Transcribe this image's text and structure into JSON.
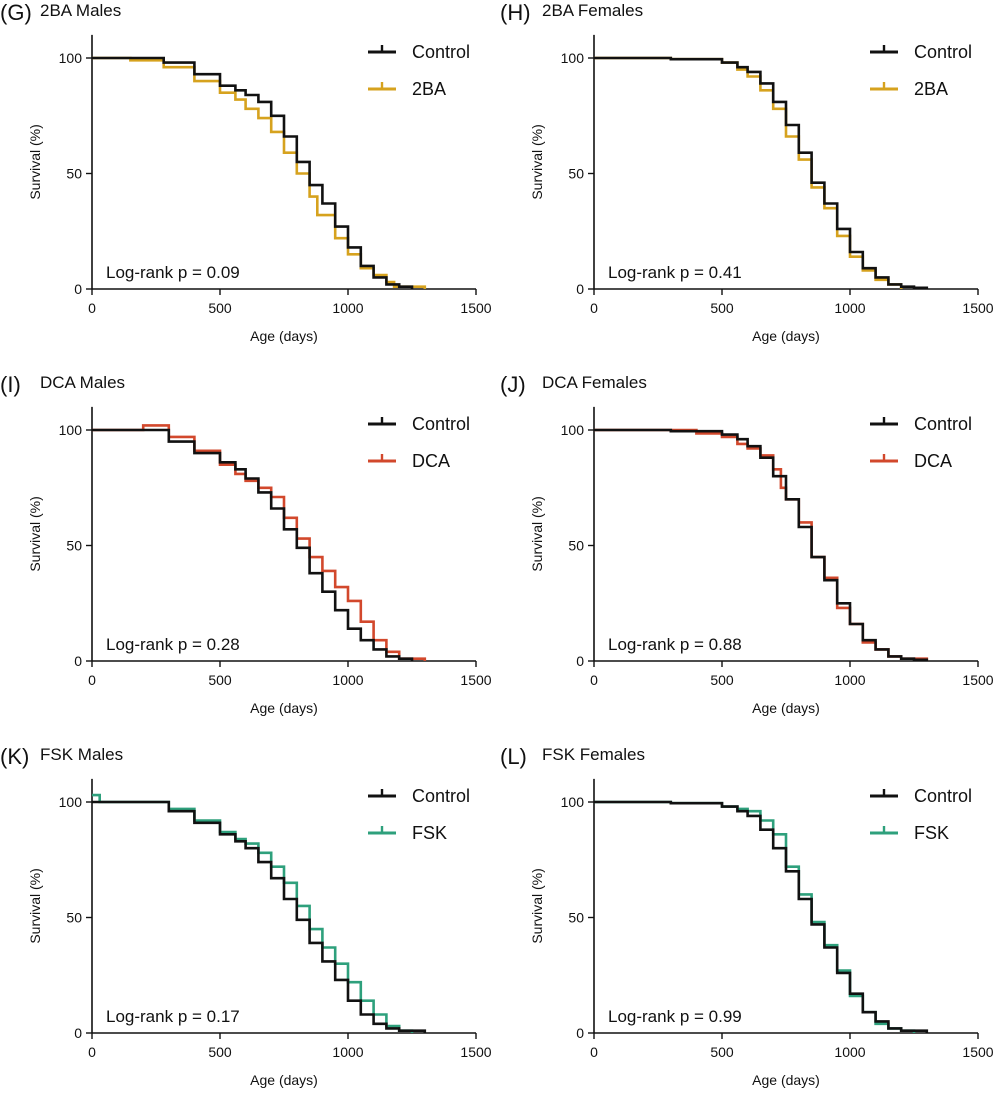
{
  "chart_data": [
    {
      "panel": "(G)",
      "title": "2BA Males",
      "type": "line",
      "xlabel": "Age (days)",
      "ylabel": "Survival (%)",
      "xlim": [
        0,
        1500
      ],
      "ylim": [
        0,
        100
      ],
      "xticks": [
        0,
        500,
        1000,
        1500
      ],
      "yticks": [
        0,
        50,
        100
      ],
      "annotation": "Log-rank p = 0.09",
      "series": [
        {
          "name": "Control",
          "color": "#111111",
          "points": [
            [
              0,
              100
            ],
            [
              150,
              100
            ],
            [
              280,
              98
            ],
            [
              400,
              93
            ],
            [
              500,
              88
            ],
            [
              560,
              86
            ],
            [
              600,
              84
            ],
            [
              650,
              81
            ],
            [
              700,
              75
            ],
            [
              750,
              66
            ],
            [
              800,
              55
            ],
            [
              850,
              45
            ],
            [
              900,
              37
            ],
            [
              950,
              27
            ],
            [
              1000,
              18
            ],
            [
              1050,
              10
            ],
            [
              1100,
              5
            ],
            [
              1150,
              2
            ],
            [
              1200,
              1
            ],
            [
              1250,
              0
            ]
          ]
        },
        {
          "name": "2BA",
          "color": "#D6A21E",
          "points": [
            [
              0,
              100
            ],
            [
              150,
              99
            ],
            [
              280,
              96
            ],
            [
              400,
              90
            ],
            [
              500,
              85
            ],
            [
              560,
              82
            ],
            [
              600,
              78
            ],
            [
              650,
              74
            ],
            [
              700,
              68
            ],
            [
              750,
              59
            ],
            [
              800,
              50
            ],
            [
              850,
              40
            ],
            [
              880,
              32
            ],
            [
              950,
              22
            ],
            [
              1000,
              15
            ],
            [
              1050,
              9
            ],
            [
              1100,
              6
            ],
            [
              1150,
              3
            ],
            [
              1180,
              1
            ],
            [
              1300,
              0
            ]
          ]
        }
      ]
    },
    {
      "panel": "(H)",
      "title": "2BA Females",
      "type": "line",
      "xlabel": "Age (days)",
      "ylabel": "Survival (%)",
      "xlim": [
        0,
        1500
      ],
      "ylim": [
        0,
        100
      ],
      "xticks": [
        0,
        500,
        1000,
        1500
      ],
      "yticks": [
        0,
        50,
        100
      ],
      "annotation": "Log-rank p = 0.41",
      "series": [
        {
          "name": "Control",
          "color": "#111111",
          "points": [
            [
              0,
              100
            ],
            [
              300,
              99.5
            ],
            [
              500,
              98
            ],
            [
              560,
              96
            ],
            [
              600,
              94
            ],
            [
              650,
              89
            ],
            [
              700,
              81
            ],
            [
              750,
              71
            ],
            [
              800,
              59
            ],
            [
              850,
              46
            ],
            [
              900,
              37
            ],
            [
              950,
              26
            ],
            [
              1000,
              16
            ],
            [
              1050,
              9
            ],
            [
              1100,
              5
            ],
            [
              1150,
              2
            ],
            [
              1200,
              1
            ],
            [
              1250,
              0.5
            ],
            [
              1300,
              0
            ]
          ]
        },
        {
          "name": "2BA",
          "color": "#D6A21E",
          "points": [
            [
              0,
              100
            ],
            [
              300,
              99.5
            ],
            [
              500,
              98
            ],
            [
              560,
              95
            ],
            [
              600,
              92
            ],
            [
              650,
              86
            ],
            [
              700,
              78
            ],
            [
              750,
              66
            ],
            [
              800,
              56
            ],
            [
              850,
              44
            ],
            [
              900,
              35
            ],
            [
              950,
              23
            ],
            [
              1000,
              14
            ],
            [
              1050,
              8
            ],
            [
              1100,
              4
            ],
            [
              1150,
              2
            ],
            [
              1200,
              0
            ]
          ]
        }
      ]
    },
    {
      "panel": "(I)",
      "title": "DCA Males",
      "type": "line",
      "xlabel": "Age (days)",
      "ylabel": "Survival (%)",
      "xlim": [
        0,
        1500
      ],
      "ylim": [
        0,
        100
      ],
      "xticks": [
        0,
        500,
        1000,
        1500
      ],
      "yticks": [
        0,
        50,
        100
      ],
      "annotation": "Log-rank p = 0.28",
      "series": [
        {
          "name": "Control",
          "color": "#111111",
          "points": [
            [
              0,
              100
            ],
            [
              200,
              100
            ],
            [
              300,
              95
            ],
            [
              400,
              90
            ],
            [
              500,
              86
            ],
            [
              560,
              83
            ],
            [
              600,
              79
            ],
            [
              650,
              73
            ],
            [
              700,
              66
            ],
            [
              750,
              57
            ],
            [
              800,
              49
            ],
            [
              850,
              38
            ],
            [
              900,
              30
            ],
            [
              950,
              22
            ],
            [
              1000,
              14
            ],
            [
              1050,
              9
            ],
            [
              1100,
              5
            ],
            [
              1150,
              2
            ],
            [
              1200,
              1
            ],
            [
              1250,
              0
            ]
          ]
        },
        {
          "name": "DCA",
          "color": "#D2482C",
          "points": [
            [
              0,
              100
            ],
            [
              200,
              102
            ],
            [
              300,
              97
            ],
            [
              400,
              91
            ],
            [
              500,
              85
            ],
            [
              560,
              81
            ],
            [
              600,
              78
            ],
            [
              650,
              75
            ],
            [
              700,
              71
            ],
            [
              750,
              62
            ],
            [
              800,
              53
            ],
            [
              850,
              45
            ],
            [
              900,
              39
            ],
            [
              950,
              32
            ],
            [
              1000,
              26
            ],
            [
              1050,
              17
            ],
            [
              1100,
              9
            ],
            [
              1150,
              4
            ],
            [
              1200,
              1
            ],
            [
              1300,
              0
            ]
          ]
        }
      ]
    },
    {
      "panel": "(J)",
      "title": "DCA Females",
      "type": "line",
      "xlabel": "Age (days)",
      "ylabel": "Survival (%)",
      "xlim": [
        0,
        1500
      ],
      "ylim": [
        0,
        100
      ],
      "xticks": [
        0,
        500,
        1000,
        1500
      ],
      "yticks": [
        0,
        50,
        100
      ],
      "annotation": "Log-rank p = 0.88",
      "series": [
        {
          "name": "Control",
          "color": "#111111",
          "points": [
            [
              0,
              100
            ],
            [
              300,
              99.5
            ],
            [
              500,
              98
            ],
            [
              560,
              96
            ],
            [
              600,
              93
            ],
            [
              650,
              88
            ],
            [
              700,
              80
            ],
            [
              750,
              70
            ],
            [
              800,
              58
            ],
            [
              850,
              45
            ],
            [
              900,
              35
            ],
            [
              950,
              25
            ],
            [
              1000,
              16
            ],
            [
              1050,
              9
            ],
            [
              1100,
              5
            ],
            [
              1150,
              2
            ],
            [
              1200,
              1
            ],
            [
              1250,
              0.5
            ],
            [
              1300,
              0
            ]
          ]
        },
        {
          "name": "DCA",
          "color": "#D2482C",
          "points": [
            [
              0,
              100
            ],
            [
              300,
              100
            ],
            [
              400,
              98.5
            ],
            [
              500,
              97
            ],
            [
              560,
              94
            ],
            [
              600,
              92
            ],
            [
              650,
              89
            ],
            [
              700,
              83
            ],
            [
              730,
              75
            ],
            [
              750,
              70
            ],
            [
              800,
              60
            ],
            [
              850,
              45
            ],
            [
              900,
              36
            ],
            [
              950,
              23
            ],
            [
              1000,
              16
            ],
            [
              1050,
              8
            ],
            [
              1100,
              5
            ],
            [
              1150,
              2
            ],
            [
              1200,
              1
            ],
            [
              1300,
              0
            ]
          ]
        }
      ]
    },
    {
      "panel": "(K)",
      "title": "FSK Males",
      "type": "line",
      "xlabel": "Age (days)",
      "ylabel": "Survival (%)",
      "xlim": [
        0,
        1500
      ],
      "ylim": [
        0,
        100
      ],
      "xticks": [
        0,
        500,
        1000,
        1500
      ],
      "yticks": [
        0,
        50,
        100
      ],
      "annotation": "Log-rank p = 0.17",
      "series": [
        {
          "name": "Control",
          "color": "#111111",
          "points": [
            [
              0,
              100
            ],
            [
              200,
              100
            ],
            [
              300,
              96
            ],
            [
              400,
              91
            ],
            [
              500,
              86
            ],
            [
              560,
              83
            ],
            [
              600,
              80
            ],
            [
              650,
              74
            ],
            [
              700,
              67
            ],
            [
              750,
              58
            ],
            [
              800,
              49
            ],
            [
              850,
              39
            ],
            [
              900,
              31
            ],
            [
              950,
              23
            ],
            [
              1000,
              14
            ],
            [
              1050,
              8
            ],
            [
              1100,
              4
            ],
            [
              1150,
              2
            ],
            [
              1200,
              1
            ],
            [
              1300,
              0
            ]
          ]
        },
        {
          "name": "FSK",
          "color": "#2EA07C",
          "points": [
            [
              0,
              103
            ],
            [
              30,
              100
            ],
            [
              200,
              100
            ],
            [
              300,
              97
            ],
            [
              400,
              92
            ],
            [
              500,
              87
            ],
            [
              560,
              84
            ],
            [
              600,
              82
            ],
            [
              650,
              78
            ],
            [
              700,
              72
            ],
            [
              750,
              65
            ],
            [
              800,
              55
            ],
            [
              850,
              45
            ],
            [
              900,
              37
            ],
            [
              950,
              30
            ],
            [
              1000,
              22
            ],
            [
              1050,
              14
            ],
            [
              1100,
              8
            ],
            [
              1150,
              3
            ],
            [
              1200,
              1
            ],
            [
              1250,
              0
            ]
          ]
        }
      ]
    },
    {
      "panel": "(L)",
      "title": "FSK Females",
      "type": "line",
      "xlabel": "Age (days)",
      "ylabel": "Survival (%)",
      "xlim": [
        0,
        1500
      ],
      "ylim": [
        0,
        100
      ],
      "xticks": [
        0,
        500,
        1000,
        1500
      ],
      "yticks": [
        0,
        50,
        100
      ],
      "annotation": "Log-rank p = 0.99",
      "series": [
        {
          "name": "Control",
          "color": "#111111",
          "points": [
            [
              0,
              100
            ],
            [
              300,
              99.5
            ],
            [
              500,
              98
            ],
            [
              560,
              96
            ],
            [
              600,
              94
            ],
            [
              650,
              88
            ],
            [
              700,
              80
            ],
            [
              750,
              70
            ],
            [
              800,
              58
            ],
            [
              850,
              47
            ],
            [
              900,
              37
            ],
            [
              950,
              26
            ],
            [
              1000,
              17
            ],
            [
              1050,
              9
            ],
            [
              1100,
              5
            ],
            [
              1150,
              2
            ],
            [
              1200,
              1
            ],
            [
              1300,
              0
            ]
          ]
        },
        {
          "name": "FSK",
          "color": "#2EA07C",
          "points": [
            [
              0,
              100
            ],
            [
              300,
              99.5
            ],
            [
              500,
              98
            ],
            [
              560,
              97
            ],
            [
              600,
              96
            ],
            [
              650,
              92
            ],
            [
              700,
              86
            ],
            [
              750,
              72
            ],
            [
              800,
              60
            ],
            [
              850,
              48
            ],
            [
              900,
              38
            ],
            [
              950,
              27
            ],
            [
              1000,
              16
            ],
            [
              1050,
              9
            ],
            [
              1100,
              4
            ],
            [
              1150,
              2
            ],
            [
              1200,
              1
            ],
            [
              1250,
              0
            ]
          ]
        }
      ]
    }
  ]
}
